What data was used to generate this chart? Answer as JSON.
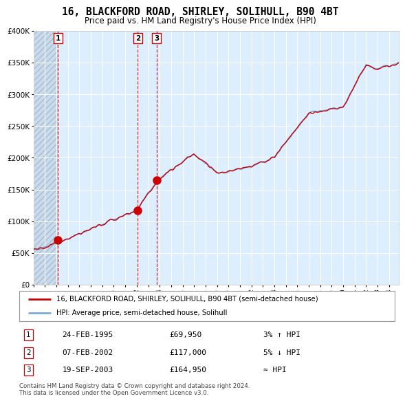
{
  "title": "16, BLACKFORD ROAD, SHIRLEY, SOLIHULL, B90 4BT",
  "subtitle": "Price paid vs. HM Land Registry's House Price Index (HPI)",
  "xlim_start": 1993.0,
  "xlim_end": 2024.83,
  "ylim": [
    0,
    400000
  ],
  "yticks": [
    0,
    50000,
    100000,
    150000,
    200000,
    250000,
    300000,
    350000,
    400000
  ],
  "ytick_labels": [
    "£0",
    "£50K",
    "£100K",
    "£150K",
    "£200K",
    "£250K",
    "£300K",
    "£350K",
    "£400K"
  ],
  "sale_dates_decimal": [
    1995.14,
    2002.09,
    2003.72
  ],
  "sale_prices": [
    69950,
    117000,
    164950
  ],
  "sale_labels": [
    "1",
    "2",
    "3"
  ],
  "hpi_line_color": "#7aaadd",
  "price_line_color": "#cc0000",
  "sale_marker_color": "#cc0000",
  "vline_color": "#cc0000",
  "background_color": "#ddeeff",
  "hatch_region_color": "#c8dcee",
  "grid_color": "#ffffff",
  "legend_label_red": "16, BLACKFORD ROAD, SHIRLEY, SOLIHULL, B90 4BT (semi-detached house)",
  "legend_label_blue": "HPI: Average price, semi-detached house, Solihull",
  "table_rows": [
    [
      "1",
      "24-FEB-1995",
      "£69,950",
      "3% ↑ HPI"
    ],
    [
      "2",
      "07-FEB-2002",
      "£117,000",
      "5% ↓ HPI"
    ],
    [
      "3",
      "19-SEP-2003",
      "£164,950",
      "≈ HPI"
    ]
  ],
  "footer_text": "Contains HM Land Registry data © Crown copyright and database right 2024.\nThis data is licensed under the Open Government Licence v3.0.",
  "xtick_years": [
    1993,
    1994,
    1995,
    1996,
    1997,
    1998,
    1999,
    2000,
    2001,
    2002,
    2003,
    2004,
    2005,
    2006,
    2007,
    2008,
    2009,
    2010,
    2011,
    2012,
    2013,
    2014,
    2015,
    2016,
    2017,
    2018,
    2019,
    2020,
    2021,
    2022,
    2023,
    2024
  ]
}
